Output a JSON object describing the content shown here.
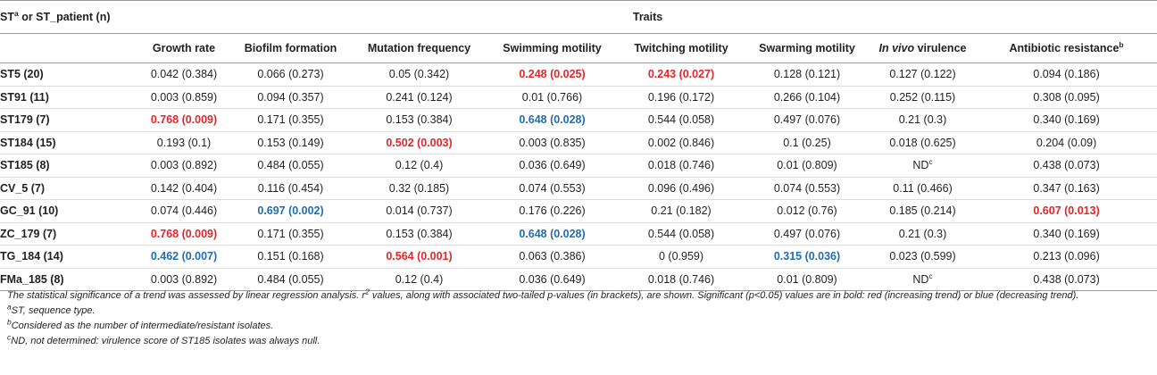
{
  "header": {
    "first_col_main": "ST",
    "first_col_sup": "a",
    "first_col_rest": " or ST_patient (n)",
    "group_label": "Traits",
    "columns": [
      {
        "label": "Growth rate",
        "italic": "",
        "sup": ""
      },
      {
        "label": "Biofilm formation",
        "italic": "",
        "sup": ""
      },
      {
        "label": "Mutation frequency",
        "italic": "",
        "sup": ""
      },
      {
        "label": "Swimming motility",
        "italic": "",
        "sup": ""
      },
      {
        "label": "Twitching motility",
        "italic": "",
        "sup": ""
      },
      {
        "label": "Swarming motility",
        "italic": "",
        "sup": ""
      },
      {
        "label": " virulence",
        "italic": "In vivo",
        "sup": ""
      },
      {
        "label": "Antibiotic resistance",
        "italic": "",
        "sup": "b"
      }
    ]
  },
  "rows": [
    {
      "st": "ST5 (20)",
      "cells": [
        {
          "text": "0.042 (0.384)"
        },
        {
          "text": "0.066 (0.273)"
        },
        {
          "text": "0.05 (0.342)"
        },
        {
          "text": "0.248 (0.025)",
          "sig": "red"
        },
        {
          "text": "0.243 (0.027)",
          "sig": "red"
        },
        {
          "text": "0.128 (0.121)"
        },
        {
          "text": "0.127 (0.122)"
        },
        {
          "text": "0.094 (0.186)"
        }
      ]
    },
    {
      "st": "ST91 (11)",
      "cells": [
        {
          "text": "0.003 (0.859)"
        },
        {
          "text": "0.094 (0.357)"
        },
        {
          "text": "0.241 (0.124)"
        },
        {
          "text": "0.01 (0.766)"
        },
        {
          "text": "0.196 (0.172)"
        },
        {
          "text": "0.266 (0.104)"
        },
        {
          "text": "0.252 (0.115)"
        },
        {
          "text": "0.308 (0.095)"
        }
      ]
    },
    {
      "st": "ST179 (7)",
      "cells": [
        {
          "text": "0.768 (0.009)",
          "sig": "red"
        },
        {
          "text": "0.171 (0.355)"
        },
        {
          "text": "0.153 (0.384)"
        },
        {
          "text": "0.648 (0.028)",
          "sig": "blue"
        },
        {
          "text": "0.544 (0.058)"
        },
        {
          "text": "0.497 (0.076)"
        },
        {
          "text": "0.21 (0.3)"
        },
        {
          "text": "0.340 (0.169)"
        }
      ]
    },
    {
      "st": "ST184 (15)",
      "cells": [
        {
          "text": "0.193 (0.1)"
        },
        {
          "text": "0.153 (0.149)"
        },
        {
          "text": "0.502 (0.003)",
          "sig": "red"
        },
        {
          "text": "0.003 (0.835)"
        },
        {
          "text": "0.002 (0.846)"
        },
        {
          "text": "0.1 (0.25)"
        },
        {
          "text": "0.018 (0.625)"
        },
        {
          "text": "0.204 (0.09)"
        }
      ]
    },
    {
      "st": "ST185 (8)",
      "cells": [
        {
          "text": "0.003 (0.892)"
        },
        {
          "text": "0.484 (0.055)"
        },
        {
          "text": "0.12 (0.4)"
        },
        {
          "text": "0.036 (0.649)"
        },
        {
          "text": "0.018 (0.746)"
        },
        {
          "text": "0.01 (0.809)"
        },
        {
          "text": "ND",
          "sup": "c"
        },
        {
          "text": "0.438 (0.073)"
        }
      ]
    },
    {
      "st": "CV_5 (7)",
      "cells": [
        {
          "text": "0.142 (0.404)"
        },
        {
          "text": "0.116 (0.454)"
        },
        {
          "text": "0.32 (0.185)"
        },
        {
          "text": "0.074 (0.553)"
        },
        {
          "text": "0.096 (0.496)"
        },
        {
          "text": "0.074 (0.553)"
        },
        {
          "text": "0.11 (0.466)"
        },
        {
          "text": "0.347 (0.163)"
        }
      ]
    },
    {
      "st": "GC_91 (10)",
      "cells": [
        {
          "text": "0.074 (0.446)"
        },
        {
          "text": "0.697 (0.002)",
          "sig": "blue"
        },
        {
          "text": "0.014 (0.737)"
        },
        {
          "text": "0.176 (0.226)"
        },
        {
          "text": "0.21 (0.182)"
        },
        {
          "text": "0.012 (0.76)"
        },
        {
          "text": "0.185 (0.214)"
        },
        {
          "text": "0.607 (0.013)",
          "sig": "red"
        }
      ]
    },
    {
      "st": "ZC_179 (7)",
      "cells": [
        {
          "text": "0.768 (0.009)",
          "sig": "red"
        },
        {
          "text": "0.171 (0.355)"
        },
        {
          "text": "0.153 (0.384)"
        },
        {
          "text": "0.648 (0.028)",
          "sig": "blue"
        },
        {
          "text": "0.544 (0.058)"
        },
        {
          "text": "0.497 (0.076)"
        },
        {
          "text": "0.21 (0.3)"
        },
        {
          "text": "0.340 (0.169)"
        }
      ]
    },
    {
      "st": "TG_184 (14)",
      "cells": [
        {
          "text": "0.462 (0.007)",
          "sig": "blue"
        },
        {
          "text": "0.151 (0.168)"
        },
        {
          "text": "0.564 (0.001)",
          "sig": "red"
        },
        {
          "text": "0.063 (0.386)"
        },
        {
          "text": "0 (0.959)"
        },
        {
          "text": "0.315 (0.036)",
          "sig": "blue"
        },
        {
          "text": "0.023 (0.599)"
        },
        {
          "text": "0.213 (0.096)"
        }
      ]
    },
    {
      "st": "FMa_185 (8)",
      "cells": [
        {
          "text": "0.003 (0.892)"
        },
        {
          "text": "0.484 (0.055)"
        },
        {
          "text": "0.12 (0.4)"
        },
        {
          "text": "0.036 (0.649)"
        },
        {
          "text": "0.018 (0.746)"
        },
        {
          "text": "0.01 (0.809)"
        },
        {
          "text": "ND",
          "sup": "c"
        },
        {
          "text": "0.438 (0.073)"
        }
      ]
    }
  ],
  "colors": {
    "red": "#e3262b",
    "blue": "#1f6db3"
  },
  "notes": {
    "main_1": "The statistical significance of a trend was assessed by linear regression analysis. r",
    "main_sup": "2",
    "main_2": " values, along with associated two-tailed p-values (in brackets), are shown. Significant (p<0.05) values are in bold: red (increasing trend) or blue (decreasing trend).",
    "footnotes": [
      {
        "mark": "a",
        "text": "ST, sequence type."
      },
      {
        "mark": "b",
        "text": "Considered as the number of intermediate/resistant isolates."
      },
      {
        "mark": "c",
        "text": "ND, not determined: virulence score of ST185 isolates was always null."
      }
    ]
  }
}
